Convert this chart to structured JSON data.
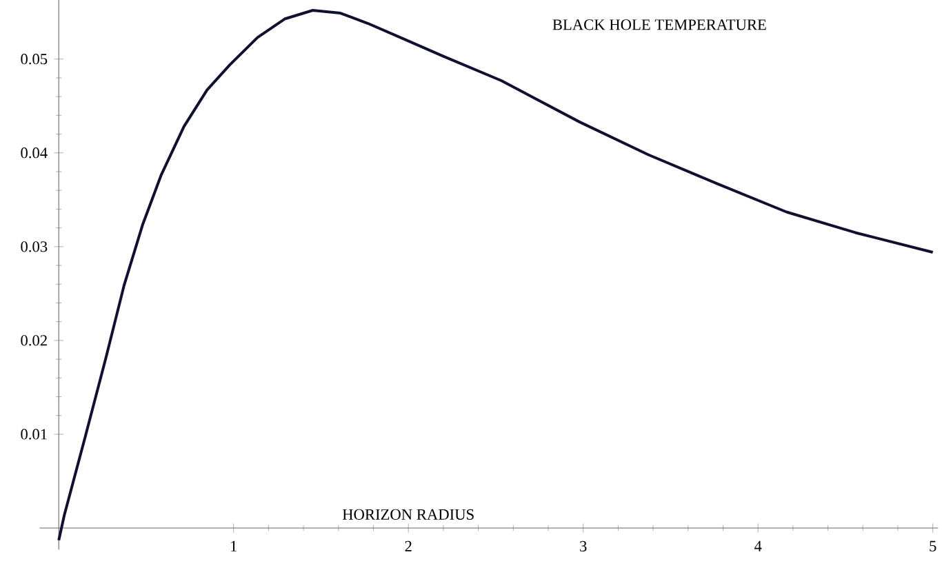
{
  "chart_data": {
    "type": "line",
    "title": "BLACK HOLE TEMPERATURE",
    "xlabel": "HORIZON RADIUS",
    "xlim": [
      -0.11,
      5.03
    ],
    "ylim": [
      -0.0023,
      0.0563
    ],
    "xticks": [
      1,
      2,
      3,
      4,
      5
    ],
    "yticks": [
      0.01,
      0.02,
      0.03,
      0.04,
      0.05
    ],
    "marker": "none",
    "line_style": "solid",
    "series": [
      {
        "color": "#101030",
        "x": [
          0.0,
          0.032,
          0.151,
          0.269,
          0.374,
          0.479,
          0.585,
          0.716,
          0.848,
          0.979,
          1.137,
          1.295,
          1.453,
          1.611,
          1.769,
          1.979,
          2.2,
          2.532,
          2.979,
          3.373,
          3.768,
          4.163,
          4.557,
          5.0
        ],
        "values": [
          -0.0013,
          0.0014,
          0.0097,
          0.0181,
          0.0259,
          0.0323,
          0.0376,
          0.0428,
          0.0467,
          0.0494,
          0.0523,
          0.0543,
          0.0552,
          0.0549,
          0.0538,
          0.0521,
          0.0503,
          0.0477,
          0.0433,
          0.0398,
          0.0367,
          0.0337,
          0.0315,
          0.0294
        ]
      }
    ]
  }
}
